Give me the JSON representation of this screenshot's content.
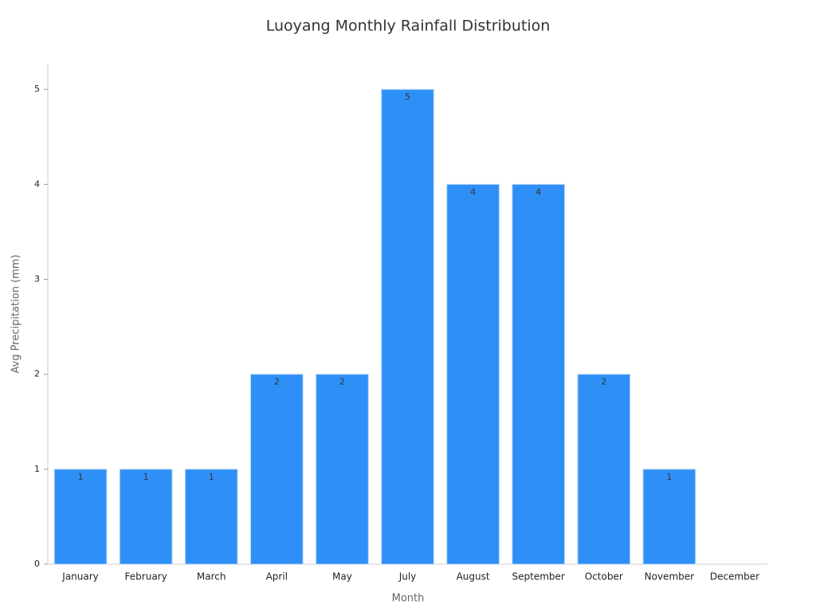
{
  "chart_data": {
    "type": "bar",
    "title": "Luoyang Monthly Rainfall Distribution",
    "x_label": "Month",
    "y_label": "Avg Precipitation (mm)",
    "categories": [
      "January",
      "February",
      "March",
      "April",
      "May",
      "July",
      "August",
      "September",
      "October",
      "November",
      "December"
    ],
    "values": [
      1,
      1,
      1,
      2,
      2,
      5,
      4,
      4,
      2,
      1,
      0
    ],
    "color": "#2e90f7",
    "ylim": [
      0,
      5.27
    ],
    "yticks": [
      0,
      1,
      2,
      3,
      4,
      5
    ],
    "grid": false
  }
}
